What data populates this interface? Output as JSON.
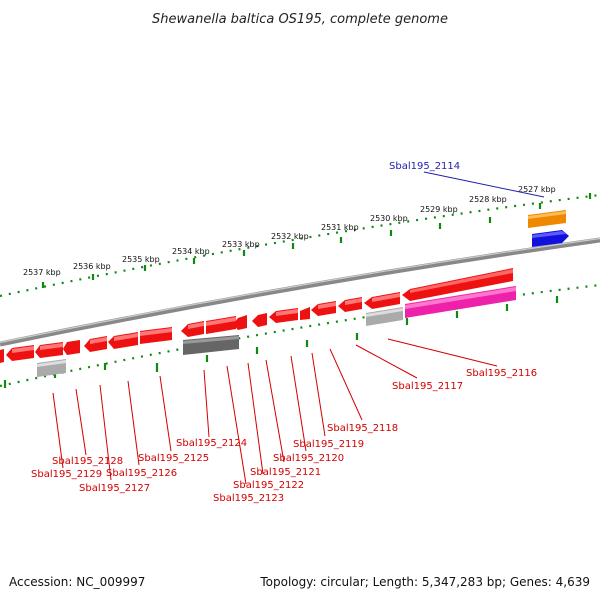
{
  "title": "Shewanella baltica OS195, complete genome",
  "footer": {
    "accession": "Accession: NC_009997",
    "topology": "Topology: circular; Length: 5,347,283 bp; Genes: 4,639"
  },
  "scale_labels": [
    "2537 kbp",
    "2536 kbp",
    "2535 kbp",
    "2534 kbp",
    "2533 kbp",
    "2532 kbp",
    "2531 kbp",
    "2530 kbp",
    "2529 kbp",
    "2528 kbp",
    "2527 kbp"
  ],
  "gene_labels": [
    {
      "text": "Sbal195_2114",
      "color": "#1f1fb0"
    },
    {
      "text": "Sbal195_2116",
      "color": "#d40000"
    },
    {
      "text": "Sbal195_2117",
      "color": "#d40000"
    },
    {
      "text": "Sbal195_2118",
      "color": "#d40000"
    },
    {
      "text": "Sbal195_2119",
      "color": "#d40000"
    },
    {
      "text": "Sbal195_2120",
      "color": "#d40000"
    },
    {
      "text": "Sbal195_2121",
      "color": "#d40000"
    },
    {
      "text": "Sbal195_2122",
      "color": "#d40000"
    },
    {
      "text": "Sbal195_2123",
      "color": "#d40000"
    },
    {
      "text": "Sbal195_2124",
      "color": "#d40000"
    },
    {
      "text": "Sbal195_2125",
      "color": "#d40000"
    },
    {
      "text": "Sbal195_2126",
      "color": "#d40000"
    },
    {
      "text": "Sbal195_2127",
      "color": "#d40000"
    },
    {
      "text": "Sbal195_2128",
      "color": "#d40000"
    },
    {
      "text": "Sbal195_2129",
      "color": "#d40000"
    }
  ],
  "colors": {
    "cds": "#ee1111",
    "pseudo_grey": "#aaaaaa",
    "rna_dark": "#666666",
    "magenta": "#ee22aa",
    "orange": "#ee8800",
    "blue": "#1111dd",
    "ticks": "#118811"
  }
}
